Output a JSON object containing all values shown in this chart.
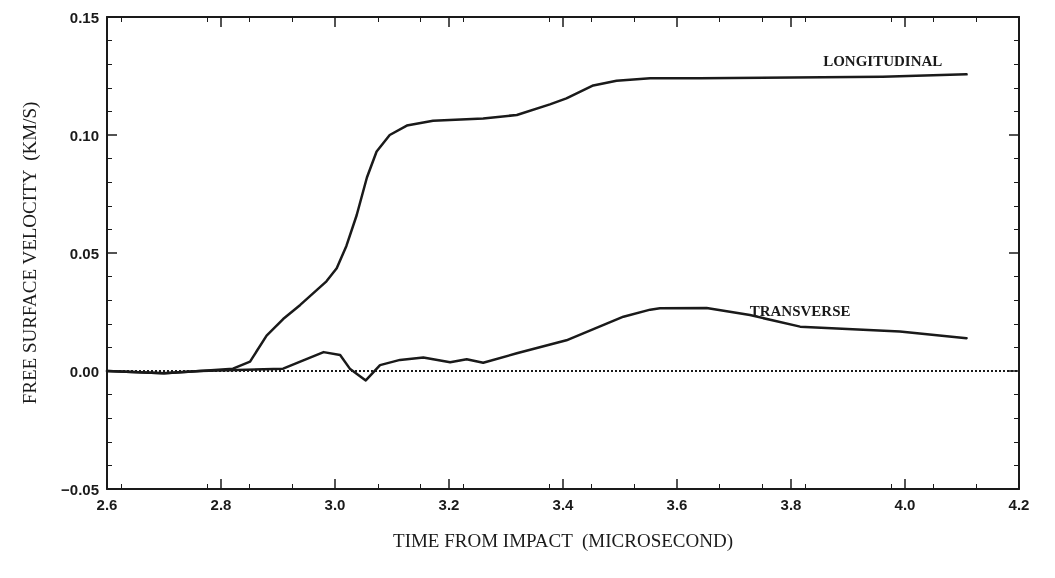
{
  "chart_data": {
    "type": "line",
    "xlabel": "TIME FROM IMPACT  (MICROSECOND)",
    "ylabel": "FREE SURFACE VELOCITY  (KM/S)",
    "xlim": [
      2.6,
      4.2
    ],
    "xticks": [
      2.6,
      2.8,
      {
        "value": 3,
        "label": "3.0"
      },
      3.2,
      3.4,
      3.6,
      3.8,
      {
        "value": 4,
        "label": "4.0"
      },
      4.2
    ],
    "ylim": [
      -0.05,
      0.15
    ],
    "yticks": [
      -0.05,
      {
        "value": 0,
        "label": "0.00"
      },
      0.05,
      {
        "value": 0.1,
        "label": "0.10"
      },
      0.15
    ],
    "grid": false,
    "marker": "none",
    "line_style": "solid",
    "series": [
      {
        "name": "LONGITUDINAL",
        "color": "#1a1a1a",
        "x": [
          2.6,
          2.7,
          2.763,
          2.821,
          2.851,
          2.88,
          2.909,
          2.939,
          2.985,
          3.003,
          3.02,
          3.038,
          3.056,
          3.073,
          3.096,
          3.126,
          3.172,
          3.26,
          3.319,
          3.377,
          3.406,
          3.453,
          3.494,
          3.553,
          3.64,
          3.961,
          4.108
        ],
        "values": [
          0.0,
          -0.001,
          0.0,
          0.001,
          0.004,
          0.015,
          0.022,
          0.028,
          0.038,
          0.0435,
          0.053,
          0.066,
          0.082,
          0.093,
          0.1,
          0.104,
          0.106,
          0.107,
          0.1085,
          0.113,
          0.1155,
          0.121,
          0.123,
          0.124,
          0.124,
          0.1247,
          0.1257
        ]
      },
      {
        "name": "TRANSVERSE",
        "color": "#1a1a1a",
        "x": [
          2.6,
          2.7,
          2.763,
          2.909,
          2.939,
          2.98,
          3.009,
          3.026,
          3.054,
          3.079,
          3.114,
          3.155,
          3.202,
          3.231,
          3.26,
          3.319,
          3.406,
          3.506,
          3.553,
          3.57,
          3.652,
          3.728,
          3.816,
          3.991,
          4.108
        ],
        "values": [
          0.0,
          -0.001,
          0.0,
          0.001,
          0.004,
          0.008,
          0.0068,
          0.001,
          -0.004,
          0.0025,
          0.0047,
          0.0057,
          0.0037,
          0.005,
          0.0035,
          0.0075,
          0.013,
          0.023,
          0.026,
          0.0266,
          0.0267,
          0.0237,
          0.0188,
          0.0167,
          0.0139
        ]
      }
    ],
    "ref_lines": [
      {
        "axis": "y",
        "value": 0,
        "line_style": "dotted",
        "color": "#1a1a1a"
      }
    ]
  }
}
